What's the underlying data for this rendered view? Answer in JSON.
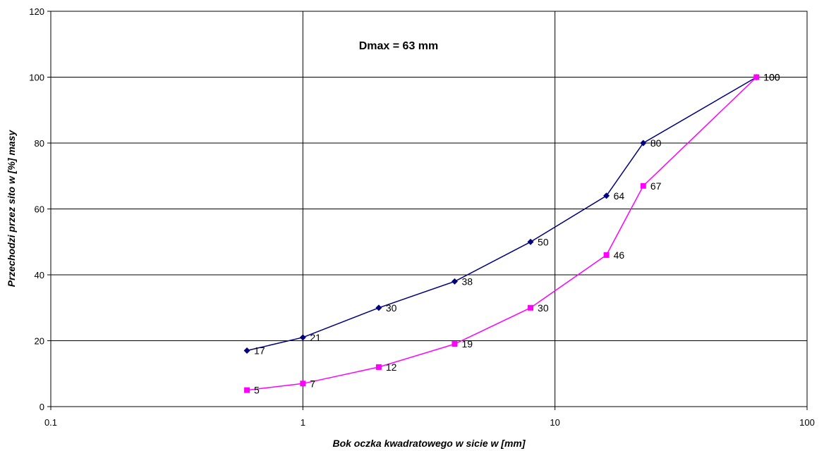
{
  "chart_data": {
    "type": "line",
    "title": "",
    "annotation": "Dmax = 63 mm",
    "xlabel": "Bok oczka kwadratowego w sicie w [mm]",
    "ylabel": "Przechodzi przez sito w [%] masy",
    "xscale": "log",
    "xlim": [
      0.1,
      100
    ],
    "ylim": [
      0,
      120
    ],
    "xticks": [
      0.1,
      1,
      10,
      100
    ],
    "xtick_labels": [
      "0.1",
      "1",
      "10",
      "100"
    ],
    "yticks": [
      0,
      20,
      40,
      60,
      80,
      100,
      120
    ],
    "ytick_labels": [
      "0",
      "20",
      "40",
      "60",
      "80",
      "100",
      "120"
    ],
    "grid": true,
    "legend": "none",
    "series": [
      {
        "color": "#000080",
        "marker": "diamond",
        "points": [
          {
            "x": 0.6,
            "y": 17,
            "label": "17"
          },
          {
            "x": 1,
            "y": 21,
            "label": "21"
          },
          {
            "x": 2,
            "y": 30,
            "label": "30"
          },
          {
            "x": 4,
            "y": 38,
            "label": "38"
          },
          {
            "x": 8,
            "y": 50,
            "label": "50"
          },
          {
            "x": 16,
            "y": 64,
            "label": "64"
          },
          {
            "x": 22.4,
            "y": 80,
            "label": "80"
          },
          {
            "x": 63,
            "y": 100,
            "label": "100"
          }
        ]
      },
      {
        "color": "#ff00ff",
        "marker": "square",
        "points": [
          {
            "x": 0.6,
            "y": 5,
            "label": "5"
          },
          {
            "x": 1,
            "y": 7,
            "label": "7"
          },
          {
            "x": 2,
            "y": 12,
            "label": "12"
          },
          {
            "x": 4,
            "y": 19,
            "label": "19"
          },
          {
            "x": 8,
            "y": 30,
            "label": "30"
          },
          {
            "x": 16,
            "y": 46,
            "label": "46"
          },
          {
            "x": 22.4,
            "y": 67,
            "label": "67"
          },
          {
            "x": 63,
            "y": 100,
            "label": "100"
          }
        ]
      }
    ]
  }
}
